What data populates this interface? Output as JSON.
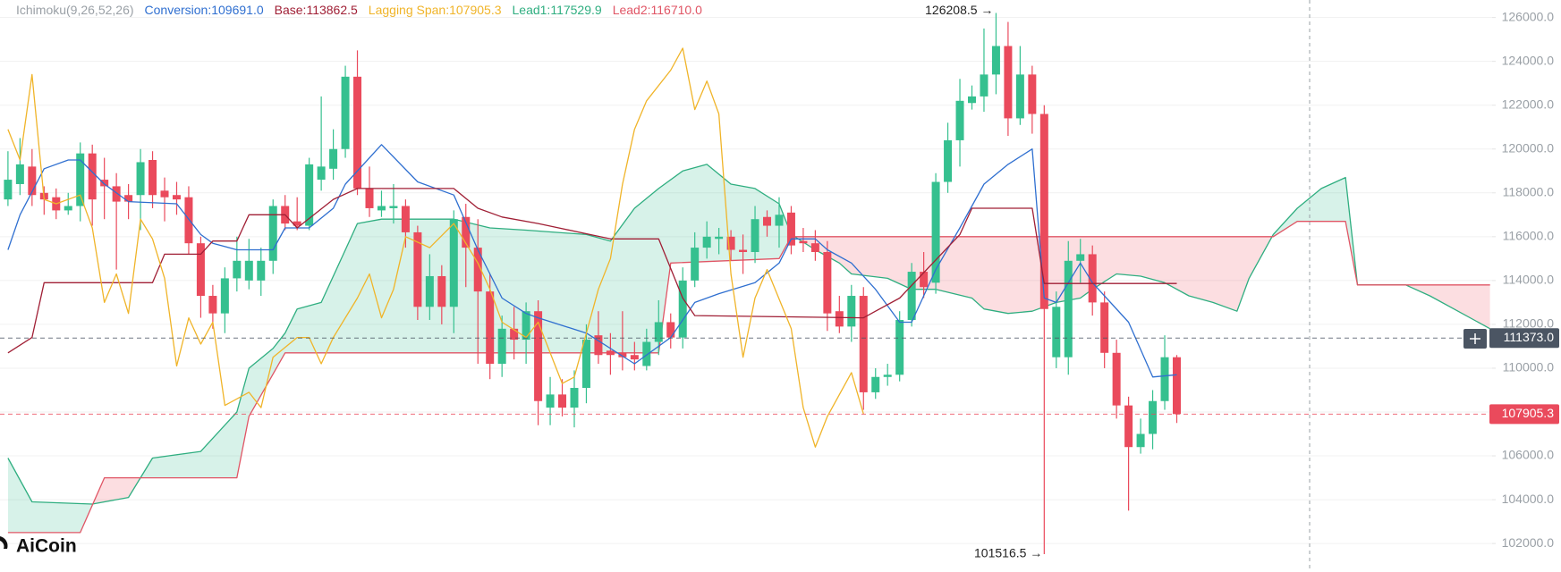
{
  "chart_data": {
    "type": "candlestick",
    "indicator": "Ichimoku(9,26,52,26)",
    "up_color": "#35c08f",
    "down_color": "#ea4a5c",
    "cloud_colors": {
      "up": "rgba(53,192,143,0.20)",
      "down": "rgba(240,90,105,0.20)"
    },
    "ylim": [
      100700,
      126800
    ],
    "yticks": [
      {
        "value": 102000,
        "label": "102000.0"
      },
      {
        "value": 104000,
        "label": "104000.0"
      },
      {
        "value": 106000,
        "label": "106000.0"
      },
      {
        "value": 108000,
        "label": "108000.0"
      },
      {
        "value": 110000,
        "label": "110000.0"
      },
      {
        "value": 112000,
        "label": "112000.0"
      },
      {
        "value": 114000,
        "label": "114000.0"
      },
      {
        "value": 116000,
        "label": "116000.0"
      },
      {
        "value": 118000,
        "label": "118000.0"
      },
      {
        "value": 120000,
        "label": "120000.0"
      },
      {
        "value": 122000,
        "label": "122000.0"
      },
      {
        "value": 124000,
        "label": "124000.0"
      },
      {
        "value": 126000,
        "label": "126000.0"
      }
    ],
    "grid": true,
    "ohlc": [
      [
        117700,
        119900,
        117400,
        118600
      ],
      [
        118400,
        120500,
        117900,
        119300
      ],
      [
        119200,
        120000,
        117400,
        117900
      ],
      [
        118000,
        118300,
        117000,
        117700
      ],
      [
        117800,
        118200,
        116800,
        117200
      ],
      [
        117200,
        118000,
        117000,
        117400
      ],
      [
        117400,
        120300,
        116700,
        119800
      ],
      [
        119800,
        120200,
        116500,
        117700
      ],
      [
        118600,
        119600,
        116800,
        118300
      ],
      [
        118300,
        118900,
        114500,
        117600
      ],
      [
        117900,
        118400,
        116800,
        117600
      ],
      [
        117900,
        120000,
        116300,
        119400
      ],
      [
        119500,
        119900,
        117300,
        117900
      ],
      [
        118100,
        118700,
        116700,
        117800
      ],
      [
        117900,
        118500,
        117000,
        117700
      ],
      [
        117800,
        118300,
        115200,
        115700
      ],
      [
        115700,
        116000,
        112300,
        113300
      ],
      [
        113300,
        113800,
        111800,
        112500
      ],
      [
        112500,
        114600,
        111600,
        114100
      ],
      [
        114100,
        116000,
        113500,
        114900
      ],
      [
        114000,
        115900,
        113600,
        114900
      ],
      [
        114000,
        115500,
        113300,
        114900
      ],
      [
        114900,
        117700,
        114300,
        117400
      ],
      [
        117400,
        117900,
        116300,
        116600
      ],
      [
        116700,
        117800,
        116300,
        116500
      ],
      [
        116500,
        119600,
        116300,
        119300
      ],
      [
        118600,
        122400,
        118100,
        119200
      ],
      [
        119100,
        120900,
        118600,
        120000
      ],
      [
        120000,
        123800,
        119600,
        123300
      ],
      [
        123300,
        124500,
        117900,
        118200
      ],
      [
        118200,
        119200,
        116900,
        117300
      ],
      [
        117200,
        118100,
        116900,
        117400
      ],
      [
        117300,
        118400,
        116600,
        117400
      ],
      [
        117400,
        117700,
        115500,
        116200
      ],
      [
        116200,
        116500,
        112200,
        112800
      ],
      [
        112800,
        115200,
        112200,
        114200
      ],
      [
        114200,
        114700,
        112000,
        112800
      ],
      [
        112800,
        117200,
        111600,
        116800
      ],
      [
        116900,
        117500,
        113700,
        115500
      ],
      [
        115500,
        116800,
        110200,
        113500
      ],
      [
        113500,
        114300,
        109500,
        110200
      ],
      [
        110200,
        112400,
        109600,
        111800
      ],
      [
        111800,
        112800,
        110400,
        111300
      ],
      [
        111300,
        113000,
        110200,
        112600
      ],
      [
        112600,
        113100,
        107400,
        108500
      ],
      [
        108200,
        109600,
        107400,
        108800
      ],
      [
        108800,
        109500,
        107800,
        108200
      ],
      [
        108200,
        109900,
        107300,
        109100
      ],
      [
        109100,
        112000,
        108400,
        111300
      ],
      [
        111500,
        112600,
        110200,
        110600
      ],
      [
        110800,
        111600,
        109700,
        110600
      ],
      [
        110700,
        112600,
        109900,
        110500
      ],
      [
        110600,
        111200,
        109900,
        110400
      ],
      [
        110100,
        111800,
        109900,
        111200
      ],
      [
        111200,
        113100,
        110600,
        112100
      ],
      [
        112100,
        112500,
        110900,
        111400
      ],
      [
        111400,
        114600,
        110900,
        114000
      ],
      [
        114000,
        116200,
        113700,
        115500
      ],
      [
        115500,
        116700,
        115000,
        116000
      ],
      [
        115900,
        116400,
        115200,
        116000
      ],
      [
        116000,
        116300,
        114900,
        115400
      ],
      [
        115400,
        116100,
        114300,
        115300
      ],
      [
        115300,
        117400,
        114800,
        116800
      ],
      [
        116900,
        117200,
        116000,
        116500
      ],
      [
        116500,
        117800,
        115500,
        117000
      ],
      [
        117100,
        117400,
        115200,
        115600
      ],
      [
        115800,
        116400,
        115300,
        115700
      ],
      [
        115700,
        116300,
        114900,
        115300
      ],
      [
        115300,
        115800,
        111700,
        112500
      ],
      [
        112600,
        113300,
        111600,
        111900
      ],
      [
        111900,
        113800,
        111200,
        113300
      ],
      [
        113300,
        113700,
        108100,
        108900
      ],
      [
        108900,
        110000,
        108600,
        109600
      ],
      [
        109600,
        110200,
        109200,
        109700
      ],
      [
        109700,
        112600,
        109400,
        112200
      ],
      [
        112200,
        114800,
        111900,
        114400
      ],
      [
        114400,
        115300,
        113200,
        113700
      ],
      [
        113900,
        118900,
        113400,
        118500
      ],
      [
        118500,
        121200,
        118000,
        120400
      ],
      [
        120400,
        123200,
        119200,
        122200
      ],
      [
        122100,
        122900,
        121800,
        122400
      ],
      [
        122400,
        125500,
        121700,
        123400
      ],
      [
        123400,
        126208.5,
        122500,
        124700
      ],
      [
        124700,
        125800,
        120600,
        121400
      ],
      [
        121400,
        124700,
        121100,
        123400
      ],
      [
        123400,
        123800,
        120700,
        121600
      ],
      [
        121600,
        122000,
        101516.5,
        112700
      ],
      [
        110500,
        113500,
        110000,
        112800
      ],
      [
        110500,
        115800,
        109700,
        114900
      ],
      [
        114900,
        115900,
        113900,
        115200
      ],
      [
        115200,
        115600,
        112400,
        113000
      ],
      [
        113000,
        113500,
        110000,
        110700
      ],
      [
        110700,
        111300,
        107700,
        108300
      ],
      [
        108300,
        108700,
        103500,
        106400
      ],
      [
        106400,
        107700,
        106100,
        107000
      ],
      [
        107000,
        109000,
        106300,
        108500
      ],
      [
        108500,
        111500,
        108100,
        110500
      ],
      [
        110500,
        110600,
        107500,
        107905.3
      ]
    ],
    "series": [
      {
        "name": "Conversion:109691.0",
        "color": "#2f6fd0",
        "x": [
          0,
          1,
          3,
          5,
          6,
          8,
          10,
          14,
          16,
          17,
          19,
          22,
          23,
          25,
          27,
          28,
          31,
          34,
          37,
          39,
          41,
          43,
          44,
          48,
          52,
          55,
          57,
          59,
          62,
          64,
          65,
          67,
          68,
          70,
          72,
          74,
          75,
          77,
          79,
          81,
          83,
          85,
          86,
          87,
          89,
          90,
          93,
          95,
          97
        ],
        "values": [
          115400,
          117000,
          119100,
          119500,
          119500,
          118400,
          117600,
          117500,
          116100,
          115700,
          115400,
          115400,
          116400,
          116400,
          117300,
          118400,
          120200,
          118500,
          117900,
          115400,
          113200,
          112500,
          112300,
          111600,
          110200,
          111400,
          113000,
          113400,
          113900,
          114800,
          115900,
          115900,
          115400,
          114800,
          113600,
          112100,
          112100,
          114500,
          116400,
          118400,
          119300,
          120000,
          113200,
          113000,
          114800,
          113900,
          112100,
          109600,
          109700
        ]
      },
      {
        "name": "Base:113862.5",
        "color": "#a01f35",
        "x": [
          0,
          2,
          3,
          12,
          13,
          16,
          17,
          19,
          20,
          23,
          24,
          27,
          29,
          37,
          39,
          41,
          44,
          50,
          54,
          56,
          57,
          71,
          72,
          74,
          79,
          80,
          85,
          86,
          97
        ],
        "values": [
          110700,
          111400,
          113900,
          113900,
          115200,
          115200,
          115800,
          115800,
          117000,
          117000,
          116400,
          117700,
          118200,
          118200,
          117300,
          116900,
          116600,
          115900,
          115900,
          113200,
          112400,
          112300,
          112600,
          113200,
          116100,
          117300,
          117300,
          113862.5,
          113862.5
        ]
      },
      {
        "name": "Lagging Span:107905.3",
        "color": "#f0b429",
        "x": [
          0,
          1,
          2,
          3,
          4,
          6,
          7,
          8,
          9,
          10,
          11,
          12,
          13,
          14,
          15,
          16,
          17,
          18,
          20,
          21,
          22,
          24,
          25,
          26,
          27,
          29,
          30,
          31,
          32,
          33,
          35,
          37,
          39,
          40,
          41,
          43,
          44,
          46,
          47,
          48,
          49,
          50,
          51,
          52,
          53,
          55,
          56,
          57,
          58,
          59,
          60,
          61,
          62,
          63,
          65,
          66,
          67,
          68,
          70,
          71
        ],
        "values": [
          120900,
          119500,
          123400,
          117700,
          117500,
          117900,
          116400,
          113000,
          114300,
          112500,
          116800,
          115900,
          114100,
          110100,
          112300,
          111100,
          112100,
          108300,
          108900,
          108200,
          110500,
          111400,
          111400,
          110200,
          111400,
          113200,
          114300,
          112300,
          113600,
          116000,
          115500,
          116600,
          114800,
          113600,
          112100,
          111400,
          112100,
          109300,
          109600,
          111600,
          113600,
          115000,
          118400,
          120900,
          122200,
          123600,
          124600,
          121800,
          123100,
          121600,
          114300,
          110500,
          113200,
          114500,
          111800,
          108200,
          106400,
          107800,
          109800,
          107905.3
        ]
      },
      {
        "name": "Lead1:117529.9",
        "color": "#2fae80",
        "x": [
          0,
          2,
          7,
          10,
          12,
          16,
          19,
          20,
          22,
          23,
          24,
          26,
          28,
          29,
          31,
          37,
          40,
          43,
          48,
          50,
          52,
          54,
          56,
          58,
          60,
          62,
          64,
          65,
          67,
          69,
          70,
          73,
          75,
          77,
          80,
          81,
          83,
          85,
          87,
          89,
          90,
          92,
          94,
          96,
          98,
          100,
          102,
          103,
          105,
          107,
          109,
          111,
          112,
          116,
          118,
          120,
          123
        ],
        "values": [
          105900,
          103900,
          103800,
          104100,
          105900,
          106200,
          108000,
          110000,
          110900,
          111600,
          112700,
          113000,
          115400,
          116600,
          116800,
          116800,
          116400,
          116300,
          116100,
          115800,
          117300,
          118200,
          119000,
          119300,
          118400,
          118200,
          117500,
          116100,
          115400,
          114800,
          114300,
          114100,
          113600,
          113600,
          113200,
          112700,
          112500,
          112600,
          113000,
          113200,
          113600,
          114300,
          114200,
          113900,
          113300,
          113000,
          112600,
          114100,
          116100,
          117300,
          118200,
          118700,
          113800,
          113800,
          113300,
          112700,
          111800
        ]
      },
      {
        "name": "Lead2:116710.0",
        "color": "#e05565",
        "x": [
          0,
          6,
          8,
          19,
          20,
          23,
          54,
          55,
          64,
          65,
          105,
          107,
          111,
          112,
          123
        ],
        "values": [
          102500,
          102500,
          105000,
          105000,
          107800,
          110700,
          110700,
          114800,
          115000,
          116000,
          116000,
          116700,
          116700,
          113800,
          113800
        ]
      }
    ],
    "annotations": [
      "126208.5 →",
      "101516.5 →"
    ],
    "price_labels": [
      {
        "value": 111373,
        "label": "111373.0",
        "color": "#4b5563"
      },
      {
        "value": 107905.3,
        "label": "107905.3",
        "color": "#ea4a5c"
      }
    ],
    "watermark": "AiCoin"
  }
}
